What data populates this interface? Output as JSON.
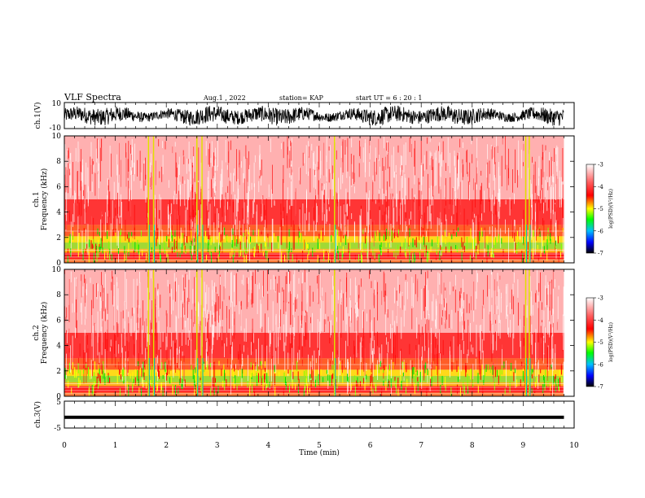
{
  "header": {
    "title": "VLF Spectra",
    "date": "Aug.1  , 2022",
    "station": "station= KAP",
    "start_ut": "start  UT =   6 : 20 : 1"
  },
  "chart_data": [
    {
      "type": "line",
      "id": "ch1-waveform",
      "ylabel": "ch.1(V)",
      "xlim": [
        0,
        10
      ],
      "ylim": [
        -10,
        10
      ],
      "yticks": [
        "10",
        "-10"
      ],
      "x_end": 9.8,
      "description_of_values": "dense oscillating signal, roughly between -7 and +8 V"
    },
    {
      "type": "heatmap",
      "id": "ch1-spectrogram",
      "ylabel_top": "ch.1",
      "ylabel": "Frequency  (kHz)",
      "xlim": [
        0,
        10
      ],
      "ylim": [
        0,
        10
      ],
      "yticks": [
        "0",
        "2",
        "4",
        "6",
        "8",
        "10"
      ],
      "x_end": 9.8,
      "colorbar": {
        "label": "log(PSD)(V²/Hz)",
        "range": [
          -7,
          -3
        ],
        "ticks": [
          "-3",
          "-4",
          "-5",
          "-6",
          "-7"
        ]
      },
      "bright_bursts_min": [
        1.65,
        1.75,
        2.6,
        2.7,
        5.3,
        9.05,
        9.12
      ]
    },
    {
      "type": "heatmap",
      "id": "ch2-spectrogram",
      "ylabel_top": "ch.2",
      "ylabel": "Frequency  (kHz)",
      "xlim": [
        0,
        10
      ],
      "ylim": [
        0,
        10
      ],
      "yticks": [
        "0",
        "2",
        "4",
        "6",
        "8",
        "10"
      ],
      "x_end": 9.8,
      "colorbar": {
        "label": "log(PSD)(V²/Hz)",
        "range": [
          -7,
          -3
        ],
        "ticks": [
          "-3",
          "-4",
          "-5",
          "-6",
          "-7"
        ]
      },
      "bright_bursts_min": [
        1.65,
        1.75,
        2.6,
        2.7,
        5.3,
        9.05,
        9.12
      ]
    },
    {
      "type": "line",
      "id": "ch3-waveform",
      "ylabel": "ch.3(V)",
      "xlim": [
        0,
        10
      ],
      "ylim": [
        -5,
        5
      ],
      "yticks": [
        "5",
        "-5"
      ],
      "x_end": 9.8,
      "xlabel": "Time  (min)",
      "xticks": [
        "0",
        "1",
        "2",
        "3",
        "4",
        "5",
        "6",
        "7",
        "8",
        "9",
        "10"
      ],
      "level": -1,
      "band_halfwidth": 0.6
    }
  ]
}
